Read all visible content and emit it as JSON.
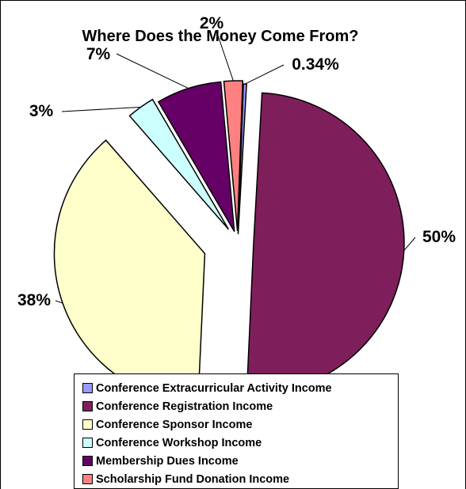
{
  "chart_data": {
    "type": "pie",
    "title": "Where Does the Money Come From?",
    "slices": [
      {
        "name": "Conference Extracurricular Activity Income",
        "value": 0.34,
        "label": "0.34%",
        "color": "#9999FF"
      },
      {
        "name": "Conference Registration Income",
        "value": 50,
        "label": "50%",
        "color": "#7E1F5C"
      },
      {
        "name": "Conference Sponsor Income",
        "value": 38,
        "label": "38%",
        "color": "#FFFFCC"
      },
      {
        "name": "Conference Workshop Income",
        "value": 3,
        "label": "3%",
        "color": "#CCFFFF"
      },
      {
        "name": "Membership Dues Income",
        "value": 7,
        "label": "7%",
        "color": "#660066"
      },
      {
        "name": "Scholarship Fund Donation Income",
        "value": 2,
        "label": "2%",
        "color": "#FF8080"
      }
    ],
    "legend_position": "bottom",
    "exploded": true
  }
}
